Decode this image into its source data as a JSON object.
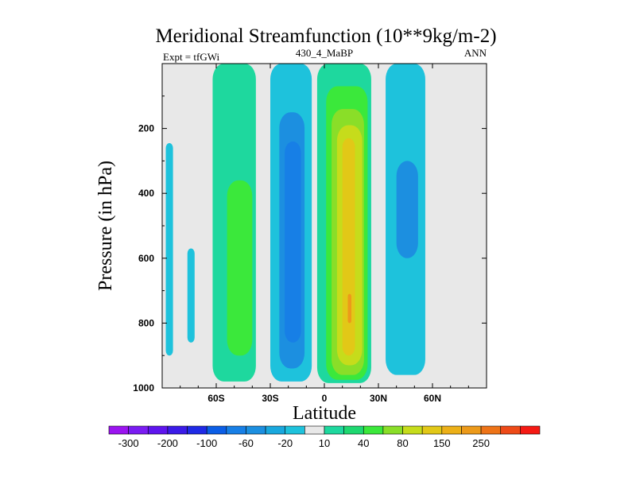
{
  "chart_data": {
    "type": "contour",
    "title": "Meridional Streamfunction (10**9kg/m-2)",
    "left_string": "Expt = tfGWi",
    "center_string": "430_4_MaBP",
    "right_string": "ANN",
    "xlabel": "Latitude",
    "ylabel": "Pressure (in hPa)",
    "xlim": [
      -90,
      90
    ],
    "ylim": [
      1000,
      0
    ],
    "x_ticks": [
      {
        "value": -60,
        "label": "60S"
      },
      {
        "value": -30,
        "label": "30S"
      },
      {
        "value": 0,
        "label": "0"
      },
      {
        "value": 30,
        "label": "30N"
      },
      {
        "value": 60,
        "label": "60N"
      }
    ],
    "y_ticks": [
      {
        "value": 200,
        "label": "200"
      },
      {
        "value": 400,
        "label": "400"
      },
      {
        "value": 600,
        "label": "600"
      },
      {
        "value": 800,
        "label": "800"
      },
      {
        "value": 1000,
        "label": "1000"
      }
    ],
    "levels": [
      {
        "label": "-300",
        "color": "#9b14f0"
      },
      {
        "label": "-200",
        "color": "#5e14ee"
      },
      {
        "label": "-100",
        "color": "#1f2ae6"
      },
      {
        "label": "-60",
        "color": "#0b5ee6"
      },
      {
        "label": "-20",
        "color": "#19a8de"
      },
      {
        "label": "10",
        "color": "#e8e8e8"
      },
      {
        "label": "40",
        "color": "#3be83b"
      },
      {
        "label": "80",
        "color": "#c6dc1b"
      },
      {
        "label": "150",
        "color": "#ec9a1a"
      },
      {
        "label": "250",
        "color": "#ee4a18"
      }
    ],
    "colorbar_colors": [
      "#9b14f0",
      "#7a1cf2",
      "#5e14ee",
      "#3b1be8",
      "#1f2ae6",
      "#0b5ee6",
      "#177fe6",
      "#1c8fe0",
      "#19a8de",
      "#1ec2dc",
      "#e8e8e8",
      "#1ed89e",
      "#1ed870",
      "#3be83b",
      "#8ade28",
      "#c6dc1b",
      "#e2c817",
      "#ecb018",
      "#ec9a1a",
      "#ee7418",
      "#ee4a18",
      "#f51a14"
    ],
    "fill_colors": {
      "background": "#e8e8e8",
      "neg_light": "#1ec2dc",
      "neg_mid": "#1c8fe0",
      "neg_dark": "#177fe6",
      "neg_darkest": "#0b5ee6",
      "pos_light": "#1ed89e",
      "pos_mid": "#3be83b",
      "pos_lime": "#8ade28",
      "pos_yellow": "#c6dc1b",
      "pos_gold": "#e2c817",
      "pos_orange": "#ec9a1a"
    },
    "regions": [
      {
        "name": "sh-polar-cell-outer",
        "level": "neg_light",
        "lat": [
          -88,
          -84
        ],
        "p": [
          245,
          900
        ]
      },
      {
        "name": "sh-polar-cell-inner",
        "level": "neg_light",
        "lat": [
          -76,
          -72
        ],
        "p": [
          570,
          860
        ]
      },
      {
        "name": "sh-ferrel-cell",
        "level": "pos_light",
        "lat": [
          -62,
          -38
        ],
        "p": [
          0,
          980
        ]
      },
      {
        "name": "sh-ferrel-core",
        "level": "pos_mid",
        "lat": [
          -54,
          -40
        ],
        "p": [
          360,
          900
        ]
      },
      {
        "name": "sh-hadley-outer",
        "level": "neg_light",
        "lat": [
          -30,
          -7
        ],
        "p": [
          0,
          980
        ]
      },
      {
        "name": "sh-hadley-mid",
        "level": "neg_mid",
        "lat": [
          -25,
          -11
        ],
        "p": [
          150,
          940
        ]
      },
      {
        "name": "sh-hadley-core",
        "level": "neg_dark",
        "lat": [
          -22,
          -13
        ],
        "p": [
          240,
          860
        ]
      },
      {
        "name": "nh-hadley-outer",
        "level": "pos_light",
        "lat": [
          -4,
          26
        ],
        "p": [
          0,
          985
        ]
      },
      {
        "name": "nh-hadley-mid",
        "level": "pos_mid",
        "lat": [
          1,
          24
        ],
        "p": [
          70,
          975
        ]
      },
      {
        "name": "nh-hadley-lime",
        "level": "pos_lime",
        "lat": [
          4,
          22
        ],
        "p": [
          140,
          960
        ]
      },
      {
        "name": "nh-hadley-yellow",
        "level": "pos_yellow",
        "lat": [
          7,
          21
        ],
        "p": [
          190,
          930
        ]
      },
      {
        "name": "nh-hadley-core",
        "level": "pos_gold",
        "lat": [
          10,
          17
        ],
        "p": [
          230,
          900
        ]
      },
      {
        "name": "nh-hadley-max",
        "level": "pos_orange",
        "lat": [
          13,
          15
        ],
        "p": [
          710,
          800
        ]
      },
      {
        "name": "nh-ferrel-cell",
        "level": "neg_light",
        "lat": [
          34,
          56
        ],
        "p": [
          0,
          960
        ]
      },
      {
        "name": "nh-ferrel-core",
        "level": "neg_mid",
        "lat": [
          40,
          52
        ],
        "p": [
          300,
          600
        ]
      }
    ]
  }
}
